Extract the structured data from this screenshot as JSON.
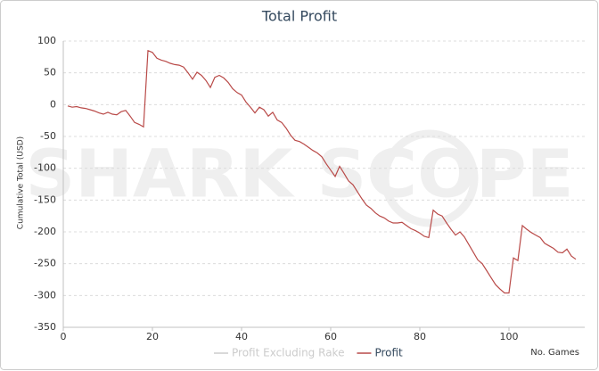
{
  "chart_data": {
    "type": "line",
    "title": "Total Profit",
    "watermark": "SHARK SCOPE",
    "y_label": "Cumulative Total (USD)",
    "x_label": "No. Games",
    "xlim": [
      0,
      117
    ],
    "xticks": [
      0,
      20,
      40,
      60,
      80,
      100
    ],
    "ylim": [
      -350,
      100
    ],
    "yticks": [
      100,
      50,
      0,
      -50,
      -100,
      -150,
      -200,
      -250,
      -300,
      -350
    ],
    "grid": true,
    "x": [
      1,
      2,
      3,
      4,
      5,
      6,
      7,
      8,
      9,
      10,
      11,
      12,
      13,
      14,
      15,
      16,
      17,
      18,
      19,
      20,
      21,
      22,
      23,
      24,
      25,
      26,
      27,
      28,
      29,
      30,
      31,
      32,
      33,
      34,
      35,
      36,
      37,
      38,
      39,
      40,
      41,
      42,
      43,
      44,
      45,
      46,
      47,
      48,
      49,
      50,
      51,
      52,
      53,
      54,
      55,
      56,
      57,
      58,
      59,
      60,
      61,
      62,
      63,
      64,
      65,
      66,
      67,
      68,
      69,
      70,
      71,
      72,
      73,
      74,
      75,
      76,
      77,
      78,
      79,
      80,
      81,
      82,
      83,
      84,
      85,
      86,
      87,
      88,
      89,
      90,
      91,
      92,
      93,
      94,
      95,
      96,
      97,
      98,
      99,
      100,
      101,
      102,
      103,
      104,
      105,
      106,
      107,
      108,
      109,
      110,
      111,
      112,
      113,
      114,
      115
    ],
    "series": [
      {
        "name": "Profit Excluding Rake",
        "color": "#cccccc",
        "hidden": true
      },
      {
        "name": "Profit",
        "color": "#b94a48",
        "values": [
          -2,
          -4,
          -3,
          -5,
          -6,
          -8,
          -10,
          -13,
          -15,
          -12,
          -15,
          -16,
          -11,
          -9,
          -18,
          -28,
          -31,
          -35,
          85,
          82,
          73,
          70,
          68,
          65,
          63,
          62,
          59,
          50,
          40,
          51,
          46,
          38,
          27,
          43,
          46,
          42,
          35,
          25,
          19,
          15,
          4,
          -4,
          -13,
          -4,
          -8,
          -18,
          -12,
          -24,
          -28,
          -37,
          -48,
          -56,
          -58,
          -62,
          -67,
          -72,
          -76,
          -82,
          -93,
          -103,
          -113,
          -97,
          -108,
          -120,
          -126,
          -137,
          -148,
          -158,
          -163,
          -170,
          -175,
          -178,
          -183,
          -186,
          -186,
          -185,
          -190,
          -195,
          -198,
          -202,
          -207,
          -209,
          -166,
          -172,
          -175,
          -186,
          -196,
          -205,
          -200,
          -208,
          -220,
          -232,
          -244,
          -250,
          -261,
          -272,
          -283,
          -290,
          -296,
          -296,
          -241,
          -245,
          -190,
          -196,
          -201,
          -205,
          -209,
          -218,
          -222,
          -226,
          -232,
          -233,
          -227,
          -238,
          -243
        ]
      }
    ]
  }
}
